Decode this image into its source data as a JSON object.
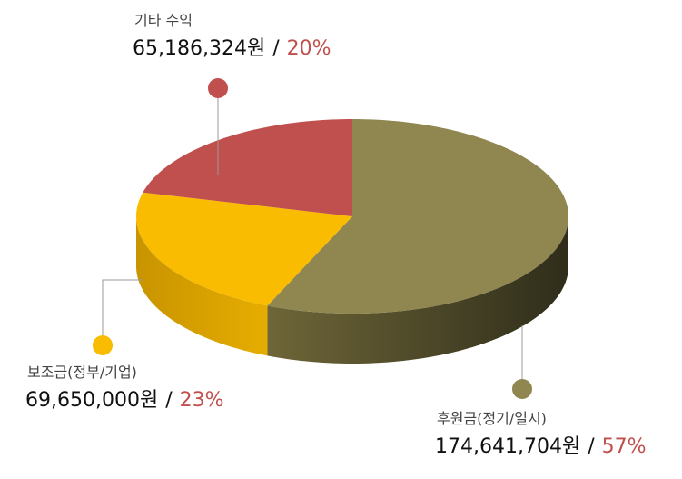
{
  "chart_data": {
    "type": "pie3d",
    "categories": [
      "후원금(정기/일시)",
      "보조금(정부/기업)",
      "기타 수익"
    ],
    "values": [
      174641704,
      69650000,
      65186324
    ],
    "value_labels": [
      "174,641,704원",
      "69,650,000원",
      "65,186,324원"
    ],
    "percent_labels": [
      "57%",
      "23%",
      "20%"
    ],
    "label_separator": "/",
    "colors": [
      "#8f8650",
      "#f9bc00",
      "#c0504d"
    ]
  }
}
